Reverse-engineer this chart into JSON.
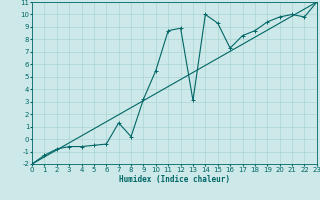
{
  "xlabel": "Humidex (Indice chaleur)",
  "background_color": "#cce8e8",
  "grid_color": "#aad4d4",
  "line_color": "#006666",
  "xlim": [
    0,
    23
  ],
  "ylim": [
    -2,
    11
  ],
  "xticks": [
    0,
    1,
    2,
    3,
    4,
    5,
    6,
    7,
    8,
    9,
    10,
    11,
    12,
    13,
    14,
    15,
    16,
    17,
    18,
    19,
    20,
    21,
    22,
    23
  ],
  "yticks": [
    -2,
    -1,
    0,
    1,
    2,
    3,
    4,
    5,
    6,
    7,
    8,
    9,
    10,
    11
  ],
  "curve1_x": [
    0,
    1,
    2,
    3,
    4,
    5,
    6,
    7,
    8,
    9,
    10,
    11,
    12,
    13,
    14,
    15,
    16,
    17,
    18,
    19,
    20,
    21,
    22,
    23
  ],
  "curve1_y": [
    -2.0,
    -1.3,
    -0.8,
    -0.6,
    -0.6,
    -0.5,
    -0.4,
    1.3,
    0.2,
    3.2,
    5.5,
    8.7,
    8.9,
    3.1,
    10.0,
    9.3,
    7.3,
    8.3,
    8.7,
    9.4,
    9.8,
    10.0,
    9.8,
    11.0
  ],
  "line_x": [
    0,
    23
  ],
  "line_y": [
    -2.0,
    11.0
  ],
  "xlabel_fontsize": 5.5,
  "tick_fontsize": 5,
  "lw": 0.8,
  "marker_size": 2.5,
  "marker_lw": 0.7
}
